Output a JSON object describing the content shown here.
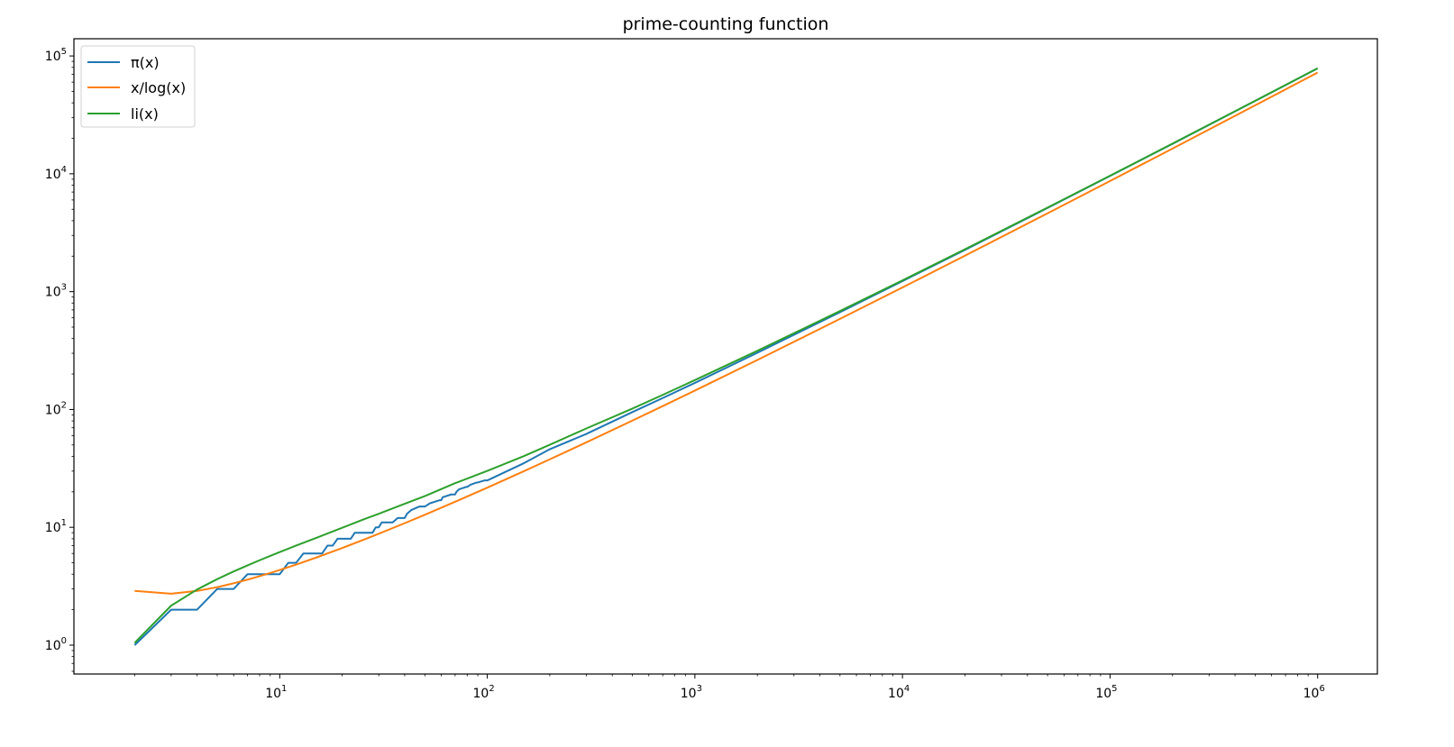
{
  "chart_data": {
    "type": "line",
    "title": "prime-counting function",
    "xlabel": "",
    "ylabel": "",
    "xscale": "log",
    "yscale": "log",
    "xlim": [
      1.02,
      1940000
    ],
    "ylim": [
      0.569,
      140000
    ],
    "grid": false,
    "legend_position": "top-left",
    "x_tick_labels": [
      {
        "value": 10,
        "label": "10",
        "exp": "1"
      },
      {
        "value": 100,
        "label": "10",
        "exp": "2"
      },
      {
        "value": 1000,
        "label": "10",
        "exp": "3"
      },
      {
        "value": 10000,
        "label": "10",
        "exp": "4"
      },
      {
        "value": 100000,
        "label": "10",
        "exp": "5"
      },
      {
        "value": 1000000,
        "label": "10",
        "exp": "6"
      }
    ],
    "y_tick_labels": [
      {
        "value": 1,
        "label": "10",
        "exp": "0"
      },
      {
        "value": 10,
        "label": "10",
        "exp": "1"
      },
      {
        "value": 100,
        "label": "10",
        "exp": "2"
      },
      {
        "value": 1000,
        "label": "10",
        "exp": "3"
      },
      {
        "value": 10000,
        "label": "10",
        "exp": "4"
      },
      {
        "value": 100000,
        "label": "10",
        "exp": "5"
      }
    ],
    "series": [
      {
        "name": "π(x)",
        "color": "#1f77b4",
        "x": [
          2,
          3,
          4,
          5,
          6,
          7,
          8,
          9,
          10,
          11,
          12,
          13,
          14,
          15,
          16,
          17,
          18,
          19,
          20,
          21,
          22,
          23,
          24,
          25,
          26,
          27,
          28,
          29,
          30,
          31,
          35,
          37,
          40,
          41,
          43,
          47,
          50,
          53,
          59,
          60,
          61,
          67,
          70,
          71,
          73,
          79,
          80,
          83,
          89,
          90,
          97,
          100,
          150,
          200,
          300,
          500,
          700,
          1000,
          2000,
          5000,
          10000,
          20000,
          50000,
          100000,
          200000,
          500000,
          1000000
        ],
        "y": [
          1,
          2,
          2,
          3,
          3,
          4,
          4,
          4,
          4,
          5,
          5,
          6,
          6,
          6,
          6,
          7,
          7,
          8,
          8,
          8,
          8,
          9,
          9,
          9,
          9,
          9,
          9,
          10,
          10,
          11,
          11,
          12,
          12,
          13,
          14,
          15,
          15,
          16,
          17,
          17,
          18,
          19,
          19,
          20,
          21,
          22,
          22,
          23,
          24,
          24,
          25,
          25,
          35,
          46,
          62,
          95,
          125,
          168,
          303,
          669,
          1229,
          2262,
          5133,
          9592,
          17984,
          41538,
          78498
        ]
      },
      {
        "name": "x/log(x)",
        "color": "#ff7f0e",
        "x": [
          2,
          3,
          4,
          5,
          6,
          7,
          8,
          9,
          10,
          12,
          15,
          20,
          25,
          30,
          40,
          50,
          70,
          100,
          150,
          200,
          300,
          500,
          700,
          1000,
          2000,
          5000,
          10000,
          20000,
          50000,
          100000,
          200000,
          500000,
          1000000
        ],
        "y": [
          2.885,
          2.731,
          2.885,
          3.107,
          3.349,
          3.597,
          3.847,
          4.096,
          4.343,
          4.829,
          5.539,
          6.676,
          7.767,
          8.82,
          10.84,
          12.78,
          16.48,
          21.71,
          29.94,
          37.75,
          52.6,
          80.45,
          106.85,
          144.76,
          263.1,
          587.0,
          1085.7,
          2019.5,
          4621,
          8685.9,
          16385,
          38103,
          72382
        ]
      },
      {
        "name": "li(x)",
        "color": "#2ca02c",
        "x": [
          2,
          3,
          4,
          5,
          6,
          7,
          8,
          9,
          10,
          12,
          15,
          20,
          25,
          30,
          40,
          50,
          70,
          100,
          150,
          200,
          300,
          500,
          700,
          1000,
          2000,
          5000,
          10000,
          20000,
          50000,
          100000,
          200000,
          500000,
          1000000
        ],
        "y": [
          1.045,
          2.164,
          2.968,
          3.635,
          4.222,
          4.757,
          5.254,
          5.722,
          6.166,
          7.0,
          8.14,
          9.905,
          11.57,
          13.02,
          15.85,
          18.4,
          23.7,
          30.13,
          40.2,
          50.2,
          69.0,
          101.8,
          133.0,
          177.6,
          314.8,
          684.3,
          1246.1,
          2288,
          5167,
          9629.8,
          18036,
          41606,
          78627
        ]
      }
    ]
  }
}
